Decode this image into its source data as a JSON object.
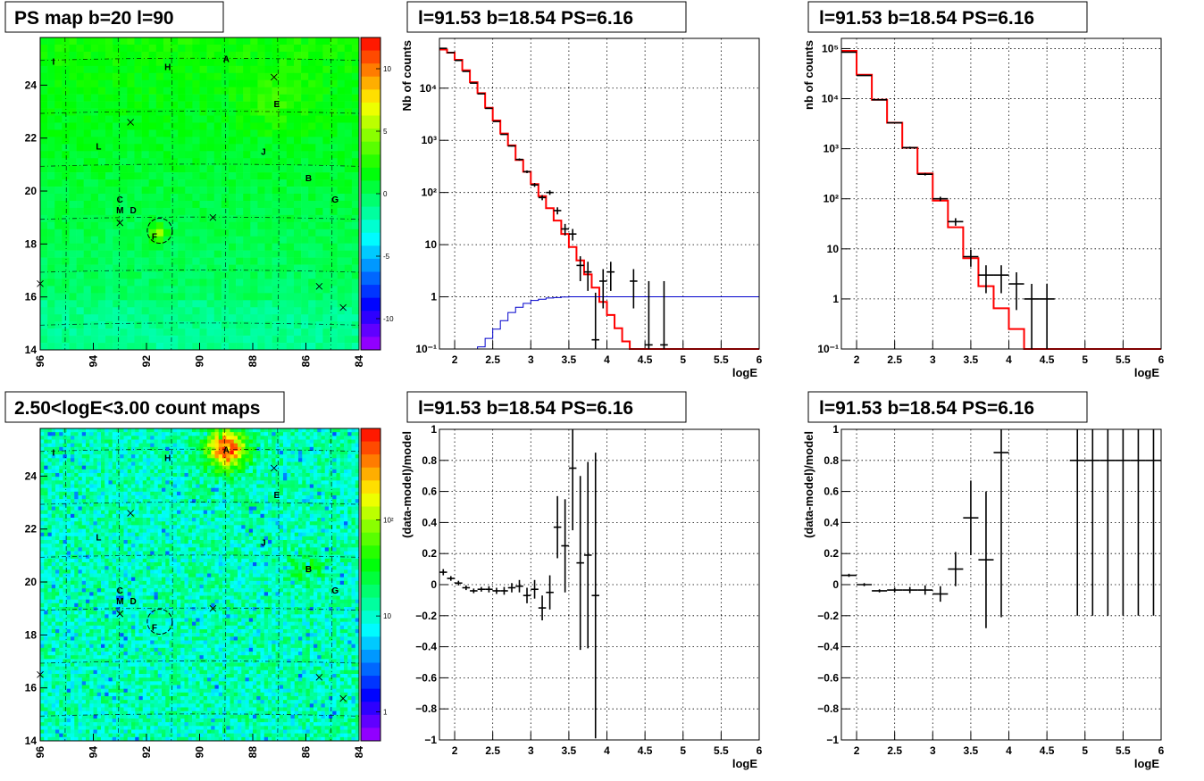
{
  "chart_data": [
    {
      "id": "ps-map",
      "type": "heatmap",
      "title": "PS map b=20 l=90",
      "x_ticks": [
        "96",
        "94",
        "92",
        "90",
        "88",
        "86",
        "84"
      ],
      "y_ticks": [
        "14",
        "16",
        "18",
        "20",
        "22",
        "24"
      ],
      "xlim": [
        96,
        84
      ],
      "ylim": [
        14,
        25.8
      ],
      "colorbar": {
        "scale": "linear",
        "range": [
          -12.5,
          12.5
        ],
        "ticks": [
          "10",
          "5",
          "0",
          "-5",
          "-10"
        ]
      },
      "sources": [
        {
          "name": "A",
          "l": 89.0,
          "b": 25.0
        },
        {
          "name": "B",
          "l": 85.9,
          "b": 20.5
        },
        {
          "name": "C",
          "l": 93.0,
          "b": 19.7
        },
        {
          "name": "D",
          "l": 92.5,
          "b": 19.3
        },
        {
          "name": "E",
          "l": 87.1,
          "b": 23.3
        },
        {
          "name": "F",
          "l": 91.7,
          "b": 18.3
        },
        {
          "name": "G",
          "l": 84.9,
          "b": 19.7
        },
        {
          "name": "H",
          "l": 91.2,
          "b": 24.7
        },
        {
          "name": "I",
          "l": 95.5,
          "b": 24.9
        },
        {
          "name": "J",
          "l": 87.6,
          "b": 21.5
        },
        {
          "name": "L",
          "l": 93.8,
          "b": 21.7
        },
        {
          "name": "M",
          "l": 93.0,
          "b": 19.3
        }
      ],
      "crosses": [
        {
          "l": 87.2,
          "b": 24.3
        },
        {
          "l": 92.6,
          "b": 22.6
        },
        {
          "l": 93.0,
          "b": 18.8
        },
        {
          "l": 89.5,
          "b": 19.0
        },
        {
          "l": 85.5,
          "b": 16.4
        },
        {
          "l": 84.6,
          "b": 15.6
        },
        {
          "l": 96.0,
          "b": 16.5
        }
      ],
      "circle": {
        "l": 91.5,
        "b": 18.5
      }
    },
    {
      "id": "count-map",
      "type": "heatmap",
      "title": "2.50<logE<3.00 count maps",
      "x_ticks": [
        "96",
        "94",
        "92",
        "90",
        "88",
        "86",
        "84"
      ],
      "y_ticks": [
        "14",
        "16",
        "18",
        "20",
        "22",
        "24"
      ],
      "xlim": [
        96,
        84
      ],
      "ylim": [
        14,
        25.8
      ],
      "colorbar": {
        "scale": "log",
        "range": [
          0.5,
          900
        ],
        "ticks": [
          "10²",
          "10",
          "1"
        ]
      },
      "hotspots": [
        {
          "name": "A",
          "l": 89.0,
          "b": 25.0,
          "peak": 800
        },
        {
          "name": "B",
          "l": 86.0,
          "b": 20.5,
          "peak": 40
        }
      ]
    },
    {
      "id": "spec-1",
      "type": "line",
      "title": "l=91.53 b=18.54 PS=6.16",
      "xlabel": "logE",
      "ylabel": "Nb of counts",
      "yscale": "log",
      "xlim": [
        1.8,
        6.0
      ],
      "ylim": [
        0.1,
        90000
      ],
      "x_ticks": [
        "2",
        "2.5",
        "3",
        "3.5",
        "4",
        "4.5",
        "5",
        "5.5",
        "6"
      ],
      "y_ticks": [
        "10⁻¹",
        "1",
        "10",
        "10²",
        "10³",
        "10⁴"
      ],
      "bin_width": 0.1,
      "model_red": [
        [
          1.8,
          55000
        ],
        [
          1.9,
          48000
        ],
        [
          2.0,
          35000
        ],
        [
          2.1,
          22000
        ],
        [
          2.2,
          13000
        ],
        [
          2.3,
          8000
        ],
        [
          2.4,
          4200
        ],
        [
          2.5,
          2400
        ],
        [
          2.6,
          1350
        ],
        [
          2.7,
          800
        ],
        [
          2.8,
          420
        ],
        [
          2.9,
          250
        ],
        [
          3.0,
          145
        ],
        [
          3.1,
          85
        ],
        [
          3.2,
          50
        ],
        [
          3.3,
          29
        ],
        [
          3.4,
          16
        ],
        [
          3.5,
          9
        ],
        [
          3.6,
          5
        ],
        [
          3.7,
          2.7
        ],
        [
          3.8,
          1.5
        ],
        [
          3.9,
          0.8
        ],
        [
          4.0,
          0.45
        ],
        [
          4.1,
          0.25
        ],
        [
          4.2,
          0.14
        ],
        [
          4.3,
          0.1
        ]
      ],
      "model_blue": [
        [
          2.2,
          0.09
        ],
        [
          2.3,
          0.11
        ],
        [
          2.4,
          0.16
        ],
        [
          2.5,
          0.24
        ],
        [
          2.6,
          0.35
        ],
        [
          2.7,
          0.5
        ],
        [
          2.8,
          0.63
        ],
        [
          2.9,
          0.75
        ],
        [
          3.0,
          0.85
        ],
        [
          3.1,
          0.9
        ],
        [
          3.2,
          0.95
        ],
        [
          3.3,
          0.97
        ],
        [
          3.4,
          0.99
        ],
        [
          3.5,
          1.0
        ]
      ],
      "data": [
        {
          "x": 1.85,
          "y": 58000,
          "lo": 58000,
          "hi": 58000
        },
        {
          "x": 1.95,
          "y": 48000,
          "lo": 48000,
          "hi": 48000
        },
        {
          "x": 2.05,
          "y": 34000,
          "lo": 34000,
          "hi": 34000
        },
        {
          "x": 2.15,
          "y": 21000,
          "lo": 21000,
          "hi": 21000
        },
        {
          "x": 2.25,
          "y": 12500,
          "lo": 12500,
          "hi": 12500
        },
        {
          "x": 2.35,
          "y": 7800,
          "lo": 7800,
          "hi": 7800
        },
        {
          "x": 2.45,
          "y": 4100,
          "lo": 4100,
          "hi": 4100
        },
        {
          "x": 2.55,
          "y": 2300,
          "lo": 2300,
          "hi": 2300
        },
        {
          "x": 2.65,
          "y": 1300,
          "lo": 1300,
          "hi": 1300
        },
        {
          "x": 2.75,
          "y": 780,
          "lo": 760,
          "hi": 800
        },
        {
          "x": 2.85,
          "y": 430,
          "lo": 410,
          "hi": 450
        },
        {
          "x": 2.95,
          "y": 250,
          "lo": 235,
          "hi": 265
        },
        {
          "x": 3.05,
          "y": 140,
          "lo": 128,
          "hi": 152
        },
        {
          "x": 3.15,
          "y": 80,
          "lo": 71,
          "hi": 89
        },
        {
          "x": 3.25,
          "y": 100,
          "lo": 90,
          "hi": 110
        },
        {
          "x": 3.35,
          "y": 45,
          "lo": 38,
          "hi": 52
        },
        {
          "x": 3.45,
          "y": 20,
          "lo": 15,
          "hi": 25
        },
        {
          "x": 3.55,
          "y": 16,
          "lo": 12,
          "hi": 20
        },
        {
          "x": 3.65,
          "y": 4,
          "lo": 2,
          "hi": 6
        },
        {
          "x": 3.75,
          "y": 3,
          "lo": 1.3,
          "hi": 4.7
        },
        {
          "x": 3.85,
          "y": 0.15,
          "lo": 0.1,
          "hi": 1.2
        },
        {
          "x": 3.95,
          "y": 2,
          "lo": 0.6,
          "hi": 3.4
        },
        {
          "x": 4.05,
          "y": 3,
          "lo": 1.3,
          "hi": 4.7
        },
        {
          "x": 4.35,
          "y": 2,
          "lo": 0.6,
          "hi": 3.4
        },
        {
          "x": 4.55,
          "y": 0.12,
          "lo": 0.1,
          "hi": 2.0
        },
        {
          "x": 4.75,
          "y": 0.12,
          "lo": 0.1,
          "hi": 2.0
        }
      ],
      "colors": {
        "model": "#ff0000",
        "background": "#0000cc",
        "data": "#000000"
      }
    },
    {
      "id": "spec-2",
      "type": "line",
      "title": "l=91.53 b=18.54 PS=6.16",
      "xlabel": "logE",
      "ylabel": "nb of counts",
      "yscale": "log",
      "xlim": [
        1.8,
        6.0
      ],
      "ylim": [
        0.1,
        160000
      ],
      "x_ticks": [
        "2",
        "2.5",
        "3",
        "3.5",
        "4",
        "4.5",
        "5",
        "5.5",
        "6"
      ],
      "y_ticks": [
        "10⁻¹",
        "1",
        "10",
        "10²",
        "10³",
        "10⁴",
        "10⁵"
      ],
      "bin_width": 0.2,
      "model_red": [
        [
          1.8,
          90000
        ],
        [
          2.0,
          30000
        ],
        [
          2.2,
          9500
        ],
        [
          2.4,
          3300
        ],
        [
          2.6,
          1050
        ],
        [
          2.8,
          320
        ],
        [
          3.0,
          92
        ],
        [
          3.2,
          27
        ],
        [
          3.4,
          6.5
        ],
        [
          3.6,
          1.8
        ],
        [
          3.8,
          0.65
        ],
        [
          4.0,
          0.25
        ],
        [
          4.2,
          0.1
        ]
      ],
      "model_blue": [],
      "data": [
        {
          "x": 1.9,
          "y": 85000,
          "lo": 85000,
          "hi": 85000
        },
        {
          "x": 2.1,
          "y": 29000,
          "lo": 29000,
          "hi": 29000
        },
        {
          "x": 2.3,
          "y": 9500,
          "lo": 9500,
          "hi": 9500
        },
        {
          "x": 2.5,
          "y": 3300,
          "lo": 3300,
          "hi": 3300
        },
        {
          "x": 2.7,
          "y": 1050,
          "lo": 1000,
          "hi": 1100
        },
        {
          "x": 2.9,
          "y": 310,
          "lo": 292,
          "hi": 328
        },
        {
          "x": 3.1,
          "y": 100,
          "lo": 90,
          "hi": 110
        },
        {
          "x": 3.3,
          "y": 35,
          "lo": 29,
          "hi": 41
        },
        {
          "x": 3.5,
          "y": 7,
          "lo": 4.4,
          "hi": 9.6
        },
        {
          "x": 3.7,
          "y": 3,
          "lo": 1.3,
          "hi": 4.7
        },
        {
          "x": 3.9,
          "y": 3,
          "lo": 1.3,
          "hi": 4.7
        },
        {
          "x": 4.1,
          "y": 2,
          "lo": 0.6,
          "hi": 3.4
        },
        {
          "x": 4.3,
          "y": 1,
          "lo": 0.1,
          "hi": 2.0
        },
        {
          "x": 4.5,
          "y": 1,
          "lo": 0.1,
          "hi": 2.0
        }
      ],
      "colors": {
        "model": "#ff0000",
        "data": "#000000"
      }
    },
    {
      "id": "resid-1",
      "type": "scatter",
      "title": "l=91.53 b=18.54 PS=6.16",
      "xlabel": "logE",
      "ylabel": "(data-model)/model",
      "xlim": [
        1.8,
        6.0
      ],
      "ylim": [
        -1,
        1
      ],
      "x_ticks": [
        "2",
        "2.5",
        "3",
        "3.5",
        "4",
        "4.5",
        "5",
        "5.5",
        "6"
      ],
      "y_ticks": [
        "−1",
        "−0.8",
        "−0.6",
        "−0.4",
        "−0.2",
        "0",
        "0.2",
        "0.4",
        "0.6",
        "0.8",
        "1"
      ],
      "bin_width": 0.1,
      "data": [
        {
          "x": 1.85,
          "y": 0.08,
          "e": 0.02
        },
        {
          "x": 1.95,
          "y": 0.04,
          "e": 0.015
        },
        {
          "x": 2.05,
          "y": 0.01,
          "e": 0.015
        },
        {
          "x": 2.15,
          "y": -0.02,
          "e": 0.015
        },
        {
          "x": 2.25,
          "y": -0.04,
          "e": 0.015
        },
        {
          "x": 2.35,
          "y": -0.03,
          "e": 0.015
        },
        {
          "x": 2.45,
          "y": -0.03,
          "e": 0.02
        },
        {
          "x": 2.55,
          "y": -0.04,
          "e": 0.02
        },
        {
          "x": 2.65,
          "y": -0.04,
          "e": 0.025
        },
        {
          "x": 2.75,
          "y": -0.02,
          "e": 0.03
        },
        {
          "x": 2.85,
          "y": -0.01,
          "e": 0.04
        },
        {
          "x": 2.95,
          "y": -0.07,
          "e": 0.05
        },
        {
          "x": 3.05,
          "y": -0.03,
          "e": 0.06
        },
        {
          "x": 3.15,
          "y": -0.15,
          "e": 0.08
        },
        {
          "x": 3.25,
          "y": -0.05,
          "e": 0.11
        },
        {
          "x": 3.35,
          "y": 0.37,
          "e": 0.2
        },
        {
          "x": 3.45,
          "y": 0.25,
          "e": 0.3
        },
        {
          "x": 3.55,
          "y": 0.75,
          "e": 0.4
        },
        {
          "x": 3.65,
          "y": 0.14,
          "e": 0.56
        },
        {
          "x": 3.75,
          "y": 0.19,
          "e": 0.6
        },
        {
          "x": 3.85,
          "y": -0.07,
          "e": 0.92
        }
      ],
      "colors": {
        "data": "#000000"
      }
    },
    {
      "id": "resid-2",
      "type": "scatter",
      "title": "l=91.53 b=18.54 PS=6.16",
      "xlabel": "logE",
      "ylabel": "(data-model)/model",
      "xlim": [
        1.8,
        6.0
      ],
      "ylim": [
        -1,
        1
      ],
      "x_ticks": [
        "2",
        "2.5",
        "3",
        "3.5",
        "4",
        "4.5",
        "5",
        "5.5",
        "6"
      ],
      "y_ticks": [
        "−1",
        "−0.8",
        "−0.6",
        "−0.4",
        "−0.2",
        "0",
        "0.2",
        "0.4",
        "0.6",
        "0.8",
        "1"
      ],
      "bin_width": 0.2,
      "data": [
        {
          "x": 1.9,
          "y": 0.06,
          "e": 0.01
        },
        {
          "x": 2.1,
          "y": 0.0,
          "e": 0.01
        },
        {
          "x": 2.3,
          "y": -0.04,
          "e": 0.01
        },
        {
          "x": 2.5,
          "y": -0.035,
          "e": 0.015
        },
        {
          "x": 2.7,
          "y": -0.035,
          "e": 0.02
        },
        {
          "x": 2.9,
          "y": -0.035,
          "e": 0.03
        },
        {
          "x": 3.1,
          "y": -0.06,
          "e": 0.05
        },
        {
          "x": 3.3,
          "y": 0.1,
          "e": 0.11
        },
        {
          "x": 3.5,
          "y": 0.43,
          "e": 0.24
        },
        {
          "x": 3.7,
          "y": 0.16,
          "e": 0.44
        },
        {
          "x": 3.9,
          "y": 0.85,
          "e": 1.06
        },
        {
          "x": 4.9,
          "y": 0.8,
          "e": 1.0
        },
        {
          "x": 5.1,
          "y": 0.8,
          "e": 1.0
        },
        {
          "x": 5.3,
          "y": 0.8,
          "e": 1.0
        },
        {
          "x": 5.5,
          "y": 0.8,
          "e": 1.0
        },
        {
          "x": 5.7,
          "y": 0.8,
          "e": 1.0
        },
        {
          "x": 5.9,
          "y": 0.8,
          "e": 1.0
        }
      ],
      "colors": {
        "data": "#000000"
      }
    }
  ]
}
